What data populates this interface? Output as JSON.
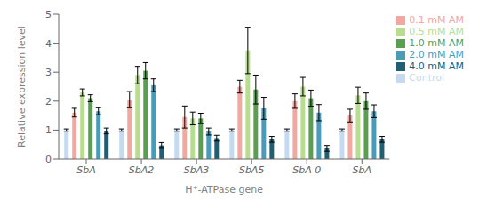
{
  "chart_data": {
    "type": "bar",
    "categories": [
      "SbA",
      "SbA2",
      "SbA3",
      "SbA5",
      "SbA 0",
      "SbA"
    ],
    "series": [
      {
        "name": "Control",
        "color": "#c5d9f1",
        "values": [
          1.0,
          1.0,
          1.0,
          1.0,
          1.0,
          1.0
        ],
        "errors": [
          0.04,
          0.04,
          0.04,
          0.04,
          0.04,
          0.04
        ]
      },
      {
        "name": "0.1 mM AM",
        "color": "#f0a8a0",
        "values": [
          1.6,
          2.05,
          1.45,
          2.5,
          2.0,
          1.5
        ],
        "errors": [
          0.15,
          0.28,
          0.38,
          0.22,
          0.25,
          0.22
        ]
      },
      {
        "name": "0.5 mM AM",
        "color": "#b8dd90",
        "values": [
          2.3,
          2.9,
          1.4,
          3.75,
          2.5,
          2.2
        ],
        "errors": [
          0.12,
          0.3,
          0.22,
          0.8,
          0.32,
          0.28
        ]
      },
      {
        "name": "1.0 mM AM",
        "color": "#5a9e52",
        "values": [
          2.1,
          3.05,
          1.4,
          2.4,
          2.1,
          2.0
        ],
        "errors": [
          0.12,
          0.28,
          0.18,
          0.5,
          0.28,
          0.28
        ]
      },
      {
        "name": "2.0 mM AM",
        "color": "#4a9bb8",
        "values": [
          1.65,
          2.55,
          0.95,
          1.75,
          1.6,
          1.65
        ],
        "errors": [
          0.12,
          0.22,
          0.12,
          0.38,
          0.28,
          0.22
        ]
      },
      {
        "name": "4.0 mM AM",
        "color": "#1e5f74",
        "values": [
          0.97,
          0.47,
          0.72,
          0.68,
          0.37,
          0.68
        ],
        "errors": [
          0.1,
          0.1,
          0.1,
          0.1,
          0.1,
          0.1
        ]
      }
    ],
    "ylabel": "Relative expression level",
    "xlabel": "H⁺-ATPase gene",
    "ylim": [
      0,
      5
    ],
    "yticks": [
      0,
      1,
      2,
      3,
      4,
      5
    ],
    "grid": false,
    "legend": "right"
  }
}
